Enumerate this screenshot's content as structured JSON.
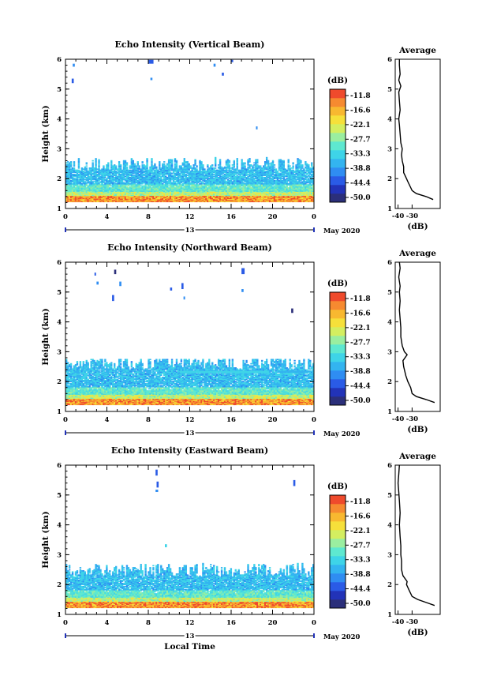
{
  "figure": {
    "xlabel": "Local Time",
    "colorbar": {
      "unit": "(dB)",
      "ticks": [
        "-11.8",
        "-16.6",
        "-22.1",
        "-27.7",
        "-33.3",
        "-38.8",
        "-44.4",
        "-50.0"
      ]
    }
  },
  "chart_data": [
    {
      "type": "heatmap",
      "title": "Echo Intensity (Vertical Beam)",
      "xlabel": "",
      "ylabel": "Height (km)",
      "xlim": [
        0,
        24
      ],
      "ylim": [
        1,
        6
      ],
      "xticks": [
        "0",
        "4",
        "8",
        "12",
        "16",
        "20",
        "0"
      ],
      "yticks": [
        "1",
        "2",
        "3",
        "4",
        "5",
        "6"
      ],
      "date_label": "13",
      "month_label": "May 2020",
      "color_range_db": [
        -50.0,
        -11.8
      ],
      "profile": [
        [
          1.3,
          -15
        ],
        [
          1.4,
          -20
        ],
        [
          1.5,
          -27
        ],
        [
          1.6,
          -30
        ],
        [
          1.7,
          -31
        ],
        [
          1.9,
          -33
        ],
        [
          2.0,
          -34
        ],
        [
          2.2,
          -36
        ],
        [
          2.4,
          -36
        ],
        [
          2.6,
          -37
        ],
        [
          2.8,
          -37.5
        ],
        [
          3.0,
          -37
        ],
        [
          3.2,
          -38
        ],
        [
          3.5,
          -38.5
        ],
        [
          3.8,
          -39
        ],
        [
          4.0,
          -39.5
        ],
        [
          4.3,
          -38.5
        ],
        [
          4.6,
          -39
        ],
        [
          4.9,
          -39.5
        ],
        [
          5.1,
          -38
        ],
        [
          5.3,
          -39.5
        ],
        [
          5.5,
          -38.5
        ],
        [
          5.8,
          -39
        ],
        [
          6.0,
          -39
        ]
      ]
    },
    {
      "type": "heatmap",
      "title": "Echo Intensity (Northward Beam)",
      "xlabel": "",
      "ylabel": "Height (km)",
      "xlim": [
        0,
        24
      ],
      "ylim": [
        1,
        6
      ],
      "xticks": [
        "0",
        "4",
        "8",
        "12",
        "16",
        "20",
        "0"
      ],
      "yticks": [
        "1",
        "2",
        "3",
        "4",
        "5",
        "6"
      ],
      "date_label": "13",
      "month_label": "May 2020",
      "color_range_db": [
        -50.0,
        -11.8
      ],
      "profile": [
        [
          1.3,
          -14
        ],
        [
          1.4,
          -20
        ],
        [
          1.5,
          -27
        ],
        [
          1.6,
          -30
        ],
        [
          1.8,
          -31
        ],
        [
          2.0,
          -33
        ],
        [
          2.2,
          -34.5
        ],
        [
          2.5,
          -36
        ],
        [
          2.7,
          -36.5
        ],
        [
          2.9,
          -33.5
        ],
        [
          3.0,
          -35.5
        ],
        [
          3.2,
          -37
        ],
        [
          3.5,
          -38
        ],
        [
          3.8,
          -38
        ],
        [
          4.1,
          -38.5
        ],
        [
          4.4,
          -39
        ],
        [
          4.7,
          -38.5
        ],
        [
          5.0,
          -39
        ],
        [
          5.2,
          -38.5
        ],
        [
          5.5,
          -39.5
        ],
        [
          5.8,
          -38.5
        ],
        [
          6.0,
          -39
        ]
      ]
    },
    {
      "type": "heatmap",
      "title": "Echo Intensity (Eastward Beam)",
      "xlabel": "Local Time",
      "ylabel": "Height (km)",
      "xlim": [
        0,
        24
      ],
      "ylim": [
        1,
        6
      ],
      "xticks": [
        "0",
        "4",
        "8",
        "12",
        "16",
        "20",
        "0"
      ],
      "yticks": [
        "1",
        "2",
        "3",
        "4",
        "5",
        "6"
      ],
      "date_label": "13",
      "month_label": "May 2020",
      "color_range_db": [
        -50.0,
        -11.8
      ],
      "profile": [
        [
          1.3,
          -14
        ],
        [
          1.4,
          -20
        ],
        [
          1.5,
          -26
        ],
        [
          1.6,
          -30
        ],
        [
          1.8,
          -32
        ],
        [
          2.0,
          -34
        ],
        [
          2.1,
          -33.5
        ],
        [
          2.3,
          -36.5
        ],
        [
          2.5,
          -37.5
        ],
        [
          2.8,
          -37.5
        ],
        [
          3.0,
          -38
        ],
        [
          3.3,
          -38
        ],
        [
          3.6,
          -38.5
        ],
        [
          4.0,
          -39
        ],
        [
          4.4,
          -38.5
        ],
        [
          4.8,
          -39
        ],
        [
          5.1,
          -39.5
        ],
        [
          5.4,
          -40
        ],
        [
          5.7,
          -39.5
        ],
        [
          6.0,
          -39
        ]
      ]
    }
  ],
  "average_panel": {
    "title": "Average",
    "xlabel": "(dB)",
    "xlim": [
      -42,
      -10
    ],
    "xticks": [
      "-40",
      "-30"
    ],
    "yticks": [
      "1",
      "2",
      "3",
      "4",
      "5",
      "6"
    ]
  },
  "colors": {
    "scale": [
      "#2b2f7a",
      "#2233b8",
      "#2a5be6",
      "#2f8df2",
      "#33b4f0",
      "#3ed4e8",
      "#5ee8d0",
      "#9aeea0",
      "#d4ee60",
      "#f6e03a",
      "#f8b830",
      "#f68a30",
      "#ef4a2c"
    ]
  }
}
